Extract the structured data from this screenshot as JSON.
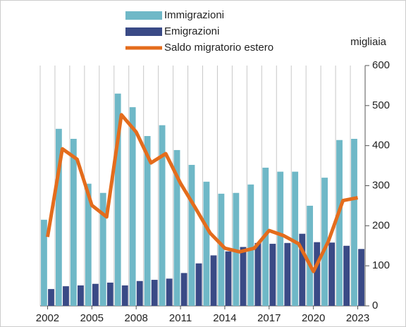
{
  "chart_data": {
    "type": "bar_line",
    "y_label": "migliaia",
    "categories": [
      "2002",
      null,
      null,
      "2005",
      null,
      null,
      "2008",
      null,
      null,
      "2011",
      null,
      null,
      "2014",
      null,
      null,
      "2017",
      null,
      null,
      "2020",
      null,
      null,
      "2023"
    ],
    "series": [
      {
        "name": "Immigrazioni",
        "type": "bar",
        "color": "#6fb8c7",
        "values": [
          215,
          442,
          417,
          305,
          282,
          530,
          496,
          424,
          451,
          389,
          352,
          310,
          280,
          282,
          303,
          345,
          335,
          335,
          250,
          320,
          414,
          417
        ]
      },
      {
        "name": "Emigrazioni",
        "type": "bar",
        "color": "#3a4a86",
        "values": [
          42,
          49,
          51,
          55,
          58,
          51,
          62,
          65,
          68,
          82,
          106,
          126,
          136,
          147,
          157,
          155,
          157,
          180,
          159,
          158,
          150,
          142
        ]
      },
      {
        "name": "Saldo migratorio estero",
        "type": "line",
        "color": "#e46c1c",
        "values": [
          172,
          392,
          366,
          251,
          222,
          477,
          434,
          357,
          380,
          306,
          245,
          182,
          144,
          135,
          144,
          188,
          175,
          155,
          86,
          160,
          263,
          270
        ]
      }
    ],
    "ylim": [
      0,
      600
    ],
    "yticks": [
      0,
      100,
      200,
      300,
      400,
      500,
      600
    ],
    "grid": true
  }
}
